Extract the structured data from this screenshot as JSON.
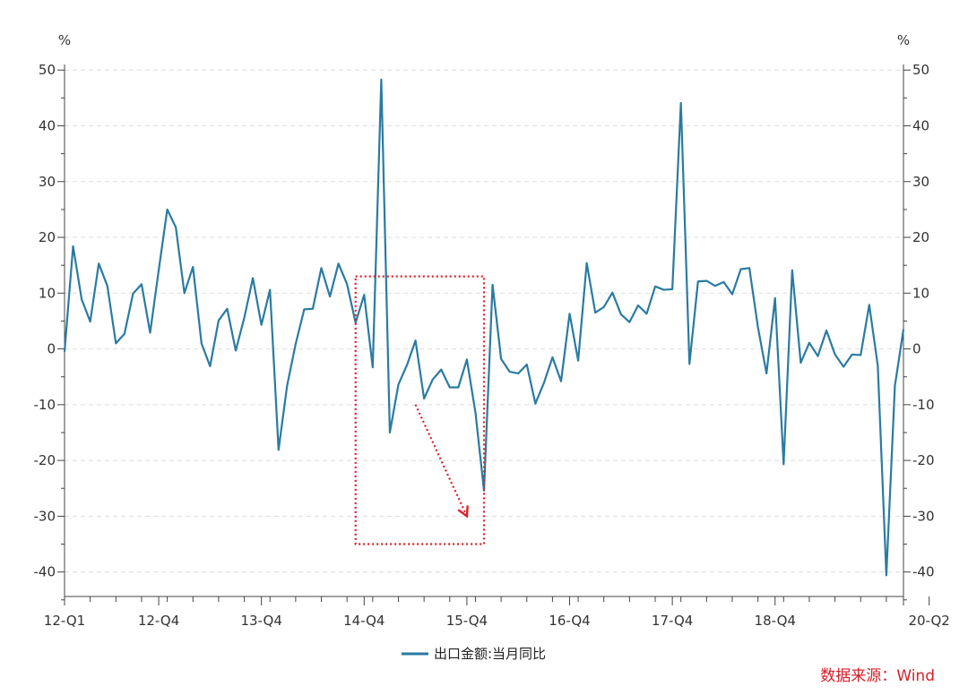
{
  "chart_data": {
    "type": "line",
    "title": "",
    "xlabel": "",
    "ylabel": "",
    "y_unit_left": "%",
    "y_unit_right": "%",
    "ylim": [
      -46,
      51
    ],
    "yticks": [
      50,
      40,
      30,
      20,
      10,
      0,
      -10,
      -20,
      -30,
      -40
    ],
    "grid": "horizontal dashed",
    "legend_position": "bottom",
    "x_tick_labels": [
      "12-Q1",
      "12-Q4",
      "13-Q4",
      "14-Q4",
      "15-Q4",
      "16-Q4",
      "17-Q4",
      "18-Q4",
      "20-Q2"
    ],
    "x_tick_months": [
      "2012-01",
      "2012-12",
      "2013-12",
      "2014-12",
      "2015-12",
      "2016-12",
      "2017-12",
      "2018-12",
      "2020-06"
    ],
    "start_month": "2012-01",
    "series": [
      {
        "name": "出口金额:当月同比",
        "color": "#2a7ba1",
        "values": [
          -0.5,
          18.4,
          8.9,
          4.9,
          15.3,
          11.3,
          1.0,
          2.7,
          9.9,
          11.6,
          2.9,
          14.1,
          25.0,
          21.8,
          10.0,
          14.7,
          1.0,
          -3.1,
          5.1,
          7.2,
          -0.3,
          5.6,
          12.7,
          4.3,
          10.6,
          -18.1,
          -6.6,
          0.9,
          7.1,
          7.2,
          14.5,
          9.4,
          15.3,
          11.6,
          4.7,
          9.7,
          -3.3,
          48.3,
          -15.0,
          -6.4,
          -2.9,
          1.5,
          -8.9,
          -5.5,
          -3.7,
          -6.9,
          -6.9,
          -1.9,
          -11.4,
          -25.4,
          11.5,
          -1.8,
          -4.1,
          -4.4,
          -2.8,
          -9.8,
          -6.1,
          -1.5,
          -5.8,
          6.3,
          -2.1,
          15.4,
          6.5,
          7.5,
          10.1,
          6.2,
          4.8,
          7.8,
          6.3,
          11.2,
          10.6,
          10.7,
          44.1,
          -2.7,
          12.1,
          12.2,
          11.3,
          12.0,
          9.8,
          14.3,
          14.5,
          3.9,
          -4.4,
          9.1,
          -20.7,
          14.1,
          -2.5,
          1.1,
          -1.3,
          3.3,
          -1.0,
          -3.2,
          -1.0,
          -1.1,
          7.9,
          -3.0,
          -40.6,
          -6.6,
          3.5
        ]
      }
    ],
    "annotations": [
      {
        "type": "dotted-box",
        "color": "#d6202a",
        "x_from": "2014-11",
        "x_to": "2016-02",
        "y_from": -35,
        "y_to": 13
      },
      {
        "type": "dotted-arrow",
        "color": "#d6202a",
        "from": {
          "x": "2015-06",
          "y": -10
        },
        "to": {
          "x": "2015-12",
          "y": -30
        }
      }
    ]
  },
  "source": "数据来源：Wind"
}
